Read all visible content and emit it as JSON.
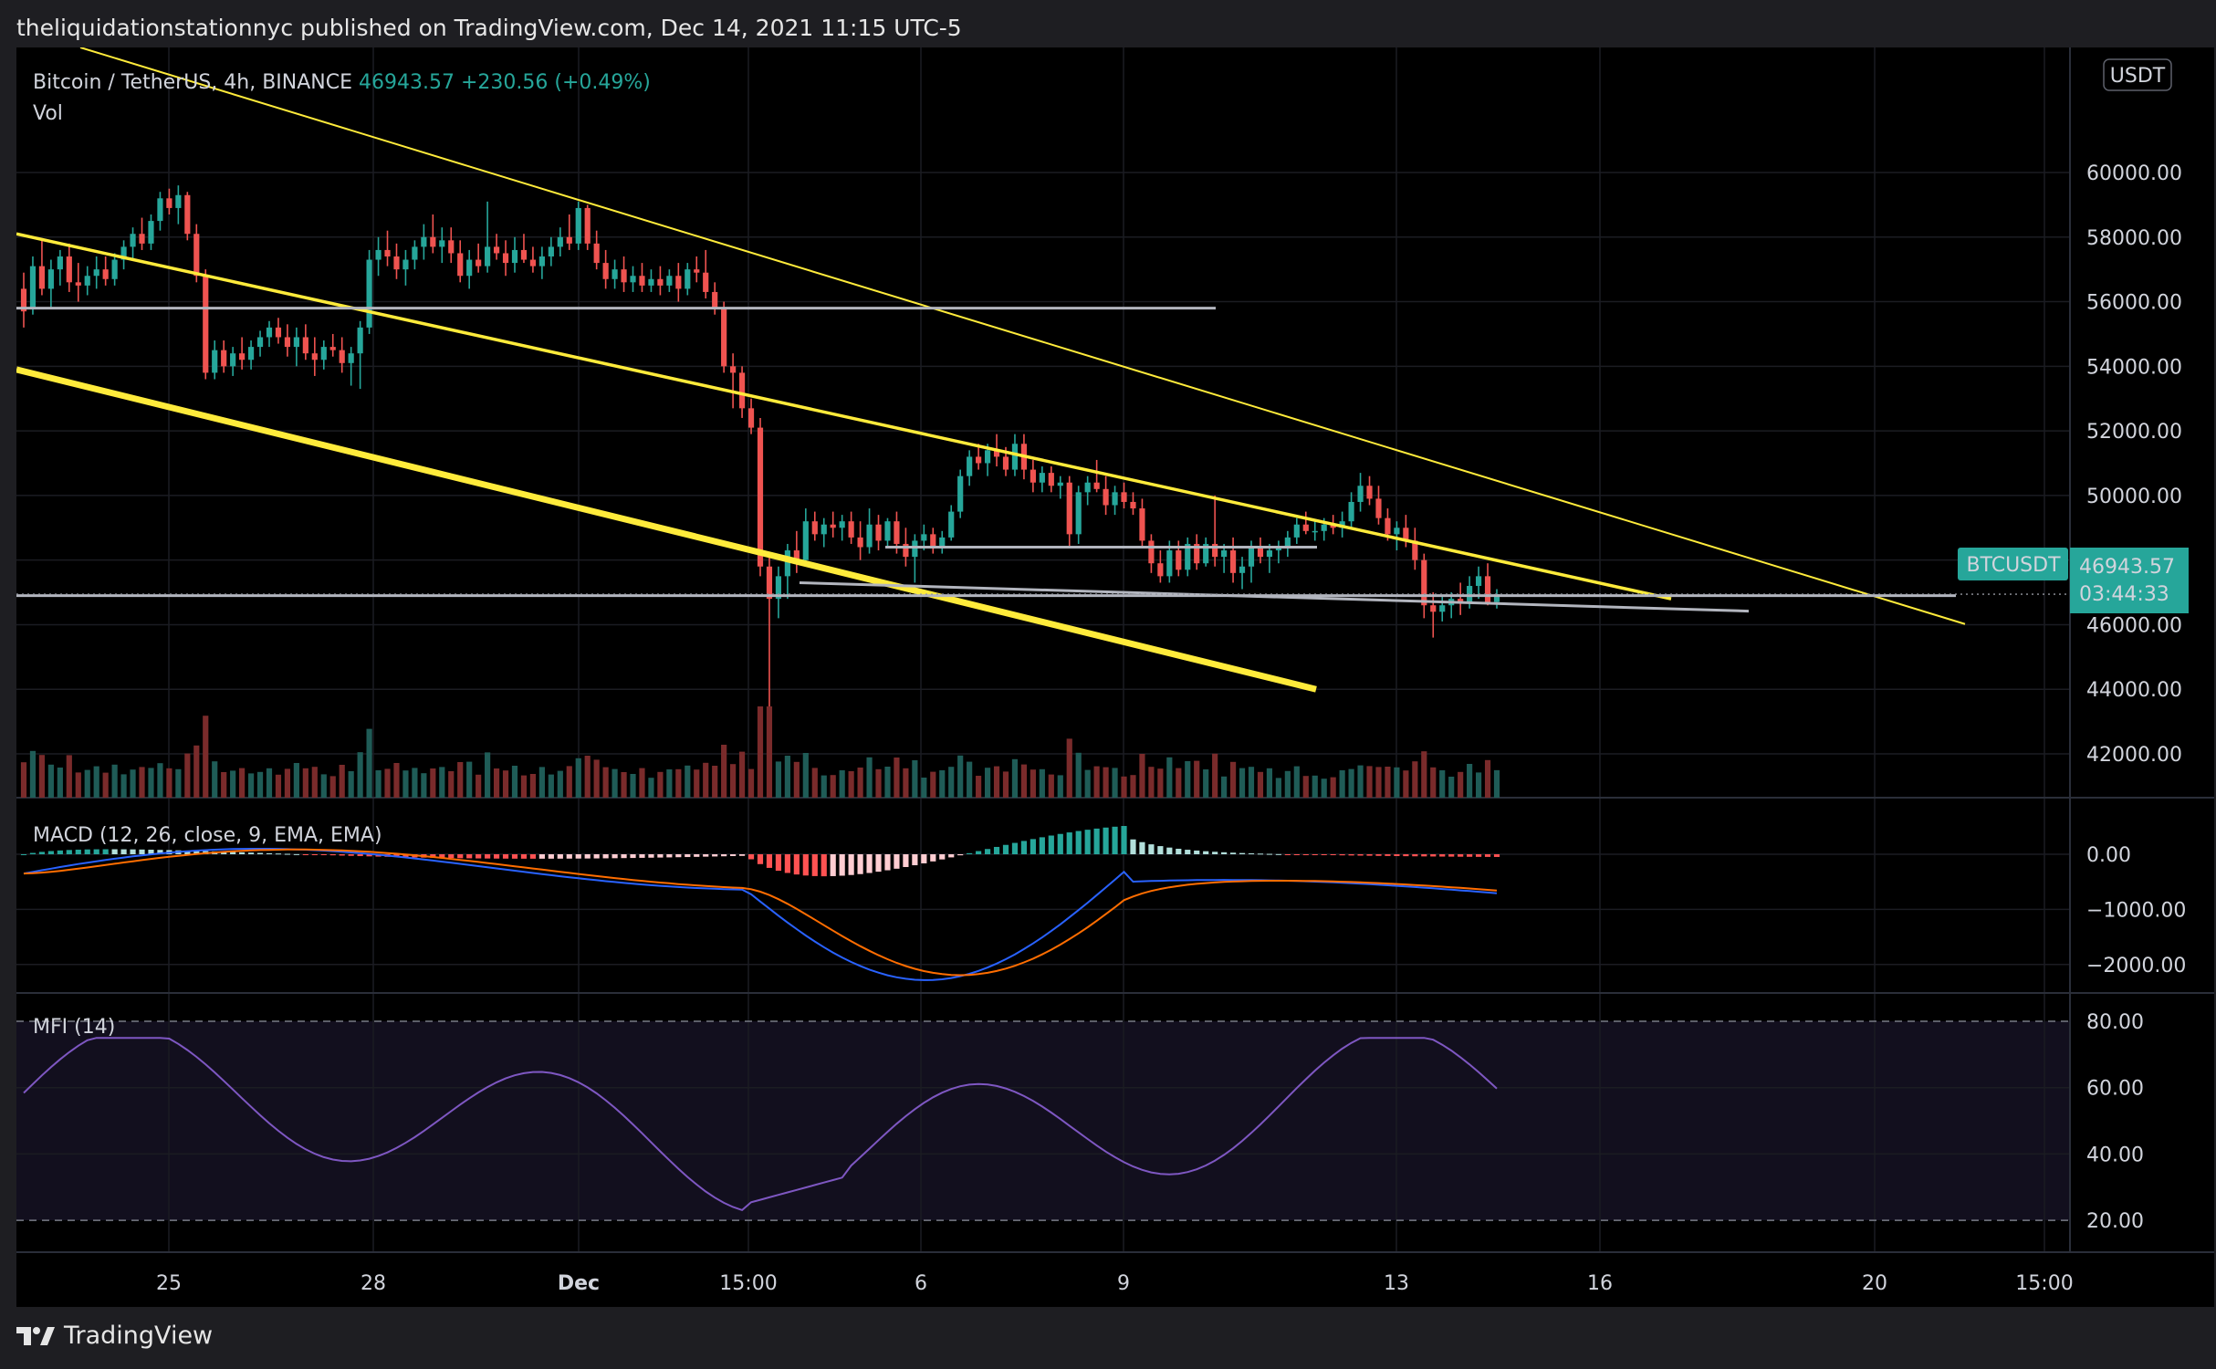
{
  "header": {
    "publisher_text": "theliquidationstationnyc published on TradingView.com, Dec 14, 2021 11:15 UTC-5"
  },
  "legend": {
    "symbol": "Bitcoin / TetherUS, 4h, BINANCE",
    "price": "46943.57",
    "change": "+230.56 (+0.49%)",
    "vol_label": "Vol",
    "macd_label": "MACD (12, 26, close, 9, EMA, EMA)",
    "mfi_label": "MFI (14)"
  },
  "currency_badge": "USDT",
  "price_tag": {
    "symbol": "BTCUSDT",
    "price": "46943.57",
    "countdown": "03:44:33"
  },
  "footer": {
    "brand": "TradingView"
  },
  "colors": {
    "up": "#26a69a",
    "down": "#ef5350",
    "trend": "#ffeb3b",
    "level": "#b2b5be",
    "macd": "#2962ff",
    "signal": "#ff6d00",
    "mfi": "#7e57c2"
  },
  "chart_data": {
    "type": "candlestick",
    "symbol": "BTCUSDT",
    "interval": "4h",
    "price_axis": {
      "ticks": [
        42000,
        44000,
        46000,
        48000,
        50000,
        52000,
        54000,
        56000,
        58000,
        60000
      ],
      "labels": [
        "42000.00",
        "44000.00",
        "46000.00",
        "48000.00",
        "50000.00",
        "52000.00",
        "54000.00",
        "56000.00",
        "58000.00",
        "60000.00"
      ],
      "range": [
        40250,
        62000
      ]
    },
    "time_axis": {
      "labels": [
        "25",
        "28",
        "Dec",
        "15:00",
        "6",
        "9",
        "13",
        "16",
        "20",
        "15:00"
      ]
    },
    "candles_approx": [
      {
        "o": 56400,
        "h": 56900,
        "l": 55200,
        "c": 55700
      },
      {
        "o": 55800,
        "h": 57400,
        "l": 55600,
        "c": 57100
      },
      {
        "o": 57100,
        "h": 57900,
        "l": 56200,
        "c": 56400
      },
      {
        "o": 56400,
        "h": 57300,
        "l": 55800,
        "c": 57000
      },
      {
        "o": 57000,
        "h": 57600,
        "l": 56500,
        "c": 57400
      },
      {
        "o": 57400,
        "h": 57800,
        "l": 56300,
        "c": 56600
      },
      {
        "o": 56600,
        "h": 57200,
        "l": 56000,
        "c": 56500
      },
      {
        "o": 56500,
        "h": 57100,
        "l": 56200,
        "c": 56800
      },
      {
        "o": 56800,
        "h": 57400,
        "l": 56400,
        "c": 57000
      },
      {
        "o": 57000,
        "h": 57400,
        "l": 56500,
        "c": 56700
      },
      {
        "o": 56700,
        "h": 57500,
        "l": 56500,
        "c": 57300
      },
      {
        "o": 57300,
        "h": 57900,
        "l": 57000,
        "c": 57700
      },
      {
        "o": 57700,
        "h": 58300,
        "l": 57300,
        "c": 58100
      },
      {
        "o": 58100,
        "h": 58600,
        "l": 57600,
        "c": 57800
      },
      {
        "o": 57800,
        "h": 58700,
        "l": 57600,
        "c": 58500
      },
      {
        "o": 58500,
        "h": 59400,
        "l": 58200,
        "c": 59200
      },
      {
        "o": 59200,
        "h": 59500,
        "l": 58700,
        "c": 58900
      },
      {
        "o": 58900,
        "h": 59600,
        "l": 58400,
        "c": 59300
      },
      {
        "o": 59300,
        "h": 59400,
        "l": 57900,
        "c": 58100
      },
      {
        "o": 58100,
        "h": 58400,
        "l": 56600,
        "c": 56800
      },
      {
        "o": 56800,
        "h": 57000,
        "l": 53600,
        "c": 53800
      },
      {
        "o": 53800,
        "h": 54800,
        "l": 53600,
        "c": 54500
      },
      {
        "o": 54500,
        "h": 54800,
        "l": 53800,
        "c": 54000
      },
      {
        "o": 54000,
        "h": 54600,
        "l": 53700,
        "c": 54400
      },
      {
        "o": 54400,
        "h": 54900,
        "l": 53900,
        "c": 54200
      },
      {
        "o": 54200,
        "h": 54800,
        "l": 53900,
        "c": 54600
      },
      {
        "o": 54600,
        "h": 55100,
        "l": 54300,
        "c": 54900
      },
      {
        "o": 54900,
        "h": 55400,
        "l": 54600,
        "c": 55200
      },
      {
        "o": 55200,
        "h": 55500,
        "l": 54700,
        "c": 54900
      },
      {
        "o": 54900,
        "h": 55300,
        "l": 54300,
        "c": 54600
      },
      {
        "o": 54600,
        "h": 55200,
        "l": 54000,
        "c": 54900
      },
      {
        "o": 54900,
        "h": 55300,
        "l": 54200,
        "c": 54400
      },
      {
        "o": 54400,
        "h": 54900,
        "l": 53700,
        "c": 54200
      },
      {
        "o": 54200,
        "h": 54800,
        "l": 53900,
        "c": 54600
      },
      {
        "o": 54600,
        "h": 55000,
        "l": 54300,
        "c": 54500
      },
      {
        "o": 54500,
        "h": 54900,
        "l": 53800,
        "c": 54100
      },
      {
        "o": 54100,
        "h": 54600,
        "l": 53400,
        "c": 54400
      },
      {
        "o": 54400,
        "h": 55400,
        "l": 53300,
        "c": 55200
      },
      {
        "o": 55200,
        "h": 57600,
        "l": 55000,
        "c": 57300
      },
      {
        "o": 57300,
        "h": 58000,
        "l": 56800,
        "c": 57600
      },
      {
        "o": 57600,
        "h": 58200,
        "l": 57100,
        "c": 57400
      },
      {
        "o": 57400,
        "h": 57800,
        "l": 56700,
        "c": 57000
      },
      {
        "o": 57000,
        "h": 57600,
        "l": 56500,
        "c": 57300
      },
      {
        "o": 57300,
        "h": 57900,
        "l": 57000,
        "c": 57700
      },
      {
        "o": 57700,
        "h": 58400,
        "l": 57300,
        "c": 58000
      },
      {
        "o": 58000,
        "h": 58700,
        "l": 57500,
        "c": 57700
      },
      {
        "o": 57700,
        "h": 58300,
        "l": 57200,
        "c": 57900
      },
      {
        "o": 57900,
        "h": 58300,
        "l": 57200,
        "c": 57500
      },
      {
        "o": 57500,
        "h": 57900,
        "l": 56600,
        "c": 56800
      },
      {
        "o": 56800,
        "h": 57600,
        "l": 56400,
        "c": 57300
      },
      {
        "o": 57300,
        "h": 57800,
        "l": 56900,
        "c": 57100
      },
      {
        "o": 57100,
        "h": 59100,
        "l": 56900,
        "c": 57700
      },
      {
        "o": 57700,
        "h": 58100,
        "l": 57300,
        "c": 57500
      },
      {
        "o": 57500,
        "h": 57900,
        "l": 56800,
        "c": 57200
      },
      {
        "o": 57200,
        "h": 58000,
        "l": 56900,
        "c": 57600
      },
      {
        "o": 57600,
        "h": 58100,
        "l": 57200,
        "c": 57300
      },
      {
        "o": 57300,
        "h": 57700,
        "l": 56900,
        "c": 57100
      },
      {
        "o": 57100,
        "h": 57700,
        "l": 56700,
        "c": 57400
      },
      {
        "o": 57400,
        "h": 58000,
        "l": 57100,
        "c": 57700
      },
      {
        "o": 57700,
        "h": 58300,
        "l": 57400,
        "c": 58000
      },
      {
        "o": 58000,
        "h": 58700,
        "l": 57600,
        "c": 57800
      },
      {
        "o": 57800,
        "h": 59100,
        "l": 57600,
        "c": 58900
      },
      {
        "o": 58900,
        "h": 59000,
        "l": 57600,
        "c": 57800
      },
      {
        "o": 57800,
        "h": 58200,
        "l": 57000,
        "c": 57200
      },
      {
        "o": 57200,
        "h": 57600,
        "l": 56400,
        "c": 56700
      },
      {
        "o": 56700,
        "h": 57300,
        "l": 56400,
        "c": 57000
      },
      {
        "o": 57000,
        "h": 57400,
        "l": 56300,
        "c": 56600
      },
      {
        "o": 56600,
        "h": 57100,
        "l": 56300,
        "c": 56800
      },
      {
        "o": 56800,
        "h": 57200,
        "l": 56300,
        "c": 56500
      },
      {
        "o": 56500,
        "h": 57000,
        "l": 56300,
        "c": 56700
      },
      {
        "o": 56700,
        "h": 57100,
        "l": 56200,
        "c": 56500
      },
      {
        "o": 56500,
        "h": 57000,
        "l": 56300,
        "c": 56800
      },
      {
        "o": 56800,
        "h": 57200,
        "l": 56000,
        "c": 56400
      },
      {
        "o": 56400,
        "h": 57200,
        "l": 56200,
        "c": 57000
      },
      {
        "o": 57000,
        "h": 57400,
        "l": 56600,
        "c": 56900
      },
      {
        "o": 56900,
        "h": 57600,
        "l": 56100,
        "c": 56300
      },
      {
        "o": 56300,
        "h": 56600,
        "l": 55600,
        "c": 55800
      },
      {
        "o": 55800,
        "h": 56000,
        "l": 53800,
        "c": 54000
      },
      {
        "o": 54000,
        "h": 54400,
        "l": 52700,
        "c": 53800
      },
      {
        "o": 53800,
        "h": 54000,
        "l": 52400,
        "c": 52700
      },
      {
        "o": 52700,
        "h": 53000,
        "l": 51900,
        "c": 52100
      },
      {
        "o": 52100,
        "h": 52400,
        "l": 47500,
        "c": 47800
      },
      {
        "o": 47800,
        "h": 48200,
        "l": 42000,
        "c": 46800
      },
      {
        "o": 46800,
        "h": 47800,
        "l": 46200,
        "c": 47500
      },
      {
        "o": 47500,
        "h": 48500,
        "l": 46800,
        "c": 48300
      },
      {
        "o": 48300,
        "h": 48900,
        "l": 47600,
        "c": 48000
      },
      {
        "o": 48000,
        "h": 49600,
        "l": 47800,
        "c": 49200
      },
      {
        "o": 49200,
        "h": 49500,
        "l": 48600,
        "c": 48800
      },
      {
        "o": 48800,
        "h": 49300,
        "l": 48400,
        "c": 49100
      },
      {
        "o": 49100,
        "h": 49500,
        "l": 48700,
        "c": 49000
      },
      {
        "o": 49000,
        "h": 49400,
        "l": 48600,
        "c": 49200
      },
      {
        "o": 49200,
        "h": 49500,
        "l": 48500,
        "c": 48700
      },
      {
        "o": 48700,
        "h": 49200,
        "l": 48000,
        "c": 48400
      },
      {
        "o": 48400,
        "h": 49600,
        "l": 48200,
        "c": 49100
      },
      {
        "o": 49100,
        "h": 49400,
        "l": 48300,
        "c": 48600
      },
      {
        "o": 48600,
        "h": 49300,
        "l": 48400,
        "c": 49200
      },
      {
        "o": 49200,
        "h": 49500,
        "l": 48200,
        "c": 48500
      },
      {
        "o": 48500,
        "h": 49000,
        "l": 47800,
        "c": 48100
      },
      {
        "o": 48100,
        "h": 48800,
        "l": 47300,
        "c": 48600
      },
      {
        "o": 48600,
        "h": 49100,
        "l": 48300,
        "c": 48800
      },
      {
        "o": 48800,
        "h": 49000,
        "l": 48200,
        "c": 48400
      },
      {
        "o": 48400,
        "h": 48900,
        "l": 48200,
        "c": 48700
      },
      {
        "o": 48700,
        "h": 49700,
        "l": 48600,
        "c": 49500
      },
      {
        "o": 49500,
        "h": 50800,
        "l": 49300,
        "c": 50600
      },
      {
        "o": 50600,
        "h": 51400,
        "l": 50300,
        "c": 51200
      },
      {
        "o": 51200,
        "h": 51600,
        "l": 50800,
        "c": 51000
      },
      {
        "o": 51000,
        "h": 51600,
        "l": 50600,
        "c": 51400
      },
      {
        "o": 51400,
        "h": 51900,
        "l": 50900,
        "c": 51200
      },
      {
        "o": 51200,
        "h": 51500,
        "l": 50600,
        "c": 50800
      },
      {
        "o": 50800,
        "h": 51900,
        "l": 50600,
        "c": 51600
      },
      {
        "o": 51600,
        "h": 51900,
        "l": 50500,
        "c": 50800
      },
      {
        "o": 50800,
        "h": 51100,
        "l": 50100,
        "c": 50400
      },
      {
        "o": 50400,
        "h": 50900,
        "l": 50100,
        "c": 50700
      },
      {
        "o": 50700,
        "h": 50900,
        "l": 50100,
        "c": 50300
      },
      {
        "o": 50300,
        "h": 50600,
        "l": 49900,
        "c": 50400
      },
      {
        "o": 50400,
        "h": 50600,
        "l": 48400,
        "c": 48800
      },
      {
        "o": 48800,
        "h": 50300,
        "l": 48500,
        "c": 50100
      },
      {
        "o": 50100,
        "h": 50600,
        "l": 49700,
        "c": 50400
      },
      {
        "o": 50400,
        "h": 51100,
        "l": 50100,
        "c": 50200
      },
      {
        "o": 50200,
        "h": 50600,
        "l": 49400,
        "c": 49700
      },
      {
        "o": 49700,
        "h": 50300,
        "l": 49400,
        "c": 50100
      },
      {
        "o": 50100,
        "h": 50400,
        "l": 49600,
        "c": 49800
      },
      {
        "o": 49800,
        "h": 50100,
        "l": 49400,
        "c": 49600
      },
      {
        "o": 49600,
        "h": 49900,
        "l": 48400,
        "c": 48600
      },
      {
        "o": 48600,
        "h": 48800,
        "l": 47600,
        "c": 47900
      },
      {
        "o": 47900,
        "h": 48300,
        "l": 47300,
        "c": 47500
      },
      {
        "o": 47500,
        "h": 48600,
        "l": 47300,
        "c": 48300
      },
      {
        "o": 48300,
        "h": 48600,
        "l": 47500,
        "c": 47700
      },
      {
        "o": 47700,
        "h": 48700,
        "l": 47500,
        "c": 48500
      },
      {
        "o": 48500,
        "h": 48800,
        "l": 47700,
        "c": 47900
      },
      {
        "o": 47900,
        "h": 48700,
        "l": 47800,
        "c": 48500
      },
      {
        "o": 48500,
        "h": 50000,
        "l": 47800,
        "c": 48100
      },
      {
        "o": 48100,
        "h": 48500,
        "l": 47600,
        "c": 48300
      },
      {
        "o": 48300,
        "h": 48700,
        "l": 47300,
        "c": 47600
      },
      {
        "o": 47600,
        "h": 48100,
        "l": 47100,
        "c": 47800
      },
      {
        "o": 47800,
        "h": 48600,
        "l": 47300,
        "c": 48400
      },
      {
        "o": 48400,
        "h": 48700,
        "l": 47900,
        "c": 48100
      },
      {
        "o": 48100,
        "h": 48500,
        "l": 47600,
        "c": 48300
      },
      {
        "o": 48300,
        "h": 48600,
        "l": 47900,
        "c": 48400
      },
      {
        "o": 48400,
        "h": 48900,
        "l": 48100,
        "c": 48700
      },
      {
        "o": 48700,
        "h": 49300,
        "l": 48500,
        "c": 49100
      },
      {
        "o": 49100,
        "h": 49500,
        "l": 48800,
        "c": 48900
      },
      {
        "o": 48900,
        "h": 49200,
        "l": 48600,
        "c": 48900
      },
      {
        "o": 48900,
        "h": 49300,
        "l": 48600,
        "c": 49100
      },
      {
        "o": 49100,
        "h": 49400,
        "l": 48800,
        "c": 49000
      },
      {
        "o": 49000,
        "h": 49500,
        "l": 48700,
        "c": 49200
      },
      {
        "o": 49200,
        "h": 50100,
        "l": 49000,
        "c": 49800
      },
      {
        "o": 49800,
        "h": 50700,
        "l": 49500,
        "c": 50300
      },
      {
        "o": 50300,
        "h": 50600,
        "l": 49700,
        "c": 49900
      },
      {
        "o": 49900,
        "h": 50300,
        "l": 49100,
        "c": 49300
      },
      {
        "o": 49300,
        "h": 49600,
        "l": 48600,
        "c": 48800
      },
      {
        "o": 48800,
        "h": 49200,
        "l": 48300,
        "c": 49000
      },
      {
        "o": 49000,
        "h": 49400,
        "l": 48400,
        "c": 48600
      },
      {
        "o": 48600,
        "h": 49000,
        "l": 47700,
        "c": 48000
      },
      {
        "o": 48000,
        "h": 48200,
        "l": 46200,
        "c": 46600
      },
      {
        "o": 46600,
        "h": 47000,
        "l": 45600,
        "c": 46400
      },
      {
        "o": 46400,
        "h": 46900,
        "l": 46100,
        "c": 46600
      },
      {
        "o": 46600,
        "h": 47000,
        "l": 46200,
        "c": 46800
      },
      {
        "o": 46800,
        "h": 47300,
        "l": 46300,
        "c": 46700
      },
      {
        "o": 46700,
        "h": 47500,
        "l": 46500,
        "c": 47200
      },
      {
        "o": 47200,
        "h": 47800,
        "l": 46800,
        "c": 47500
      },
      {
        "o": 47500,
        "h": 47900,
        "l": 46600,
        "c": 46700
      },
      {
        "o": 46700,
        "h": 47100,
        "l": 46500,
        "c": 46943.57
      }
    ],
    "volume_axis_hidden": true,
    "macd": {
      "params": "12, 26, close, 9, EMA, EMA",
      "ticks": [
        0,
        -1000,
        -2000
      ],
      "labels": [
        "0.00",
        "−1000.00",
        "−2000.00"
      ]
    },
    "mfi": {
      "params": "14",
      "ticks": [
        20,
        40,
        60,
        80
      ],
      "labels": [
        "20.00",
        "40.00",
        "60.00",
        "80.00"
      ],
      "band": [
        20,
        80
      ]
    }
  }
}
